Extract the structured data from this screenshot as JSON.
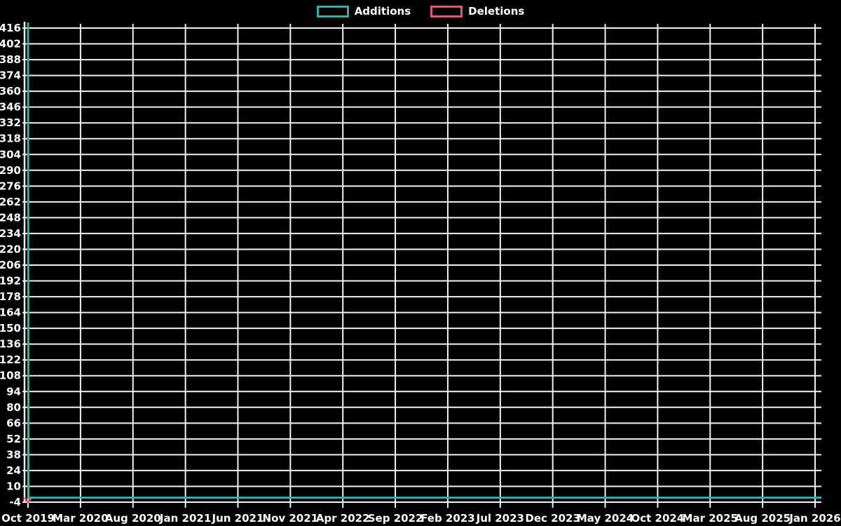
{
  "page": {
    "background": "#000000"
  },
  "chart_data": {
    "type": "line",
    "title": "",
    "legend_position": "top-center",
    "grid": true,
    "grid_color": "#f2f2f2",
    "axis_text_color": "#ffffff",
    "series": [
      {
        "name": "Additions",
        "color": "#35b0a9",
        "line_width": 3,
        "points": [
          {
            "month": 0,
            "value": 421
          },
          {
            "month": 0.05,
            "value": 0
          },
          {
            "month": 75,
            "value": 0
          }
        ]
      },
      {
        "name": "Deletions",
        "color": "#e8536d",
        "line_width": 2.5,
        "points": [
          {
            "month": -0.35,
            "value": 0
          },
          {
            "month": 0,
            "value": -4
          },
          {
            "month": 0.35,
            "value": 0
          },
          {
            "month": 75,
            "value": 0
          }
        ]
      }
    ],
    "x_axis": {
      "months_span": 75,
      "tick_labels": [
        "Oct 2019",
        "Mar 2020",
        "Aug 2020",
        "Jan 2021",
        "Jun 2021",
        "Nov 2021",
        "Apr 2022",
        "Sep 2022",
        "Feb 2023",
        "Jul 2023",
        "Dec 2023",
        "May 2024",
        "Oct 2024",
        "Mar 2025",
        "Aug 2025",
        "Jan 2026"
      ]
    },
    "y_axis": {
      "min": -4,
      "max": 421,
      "step": 14,
      "tick_labels": [
        -4,
        10,
        24,
        38,
        52,
        66,
        80,
        94,
        108,
        122,
        136,
        150,
        164,
        178,
        192,
        206,
        220,
        234,
        248,
        262,
        276,
        290,
        304,
        318,
        332,
        346,
        360,
        374,
        388,
        402,
        416
      ]
    }
  }
}
